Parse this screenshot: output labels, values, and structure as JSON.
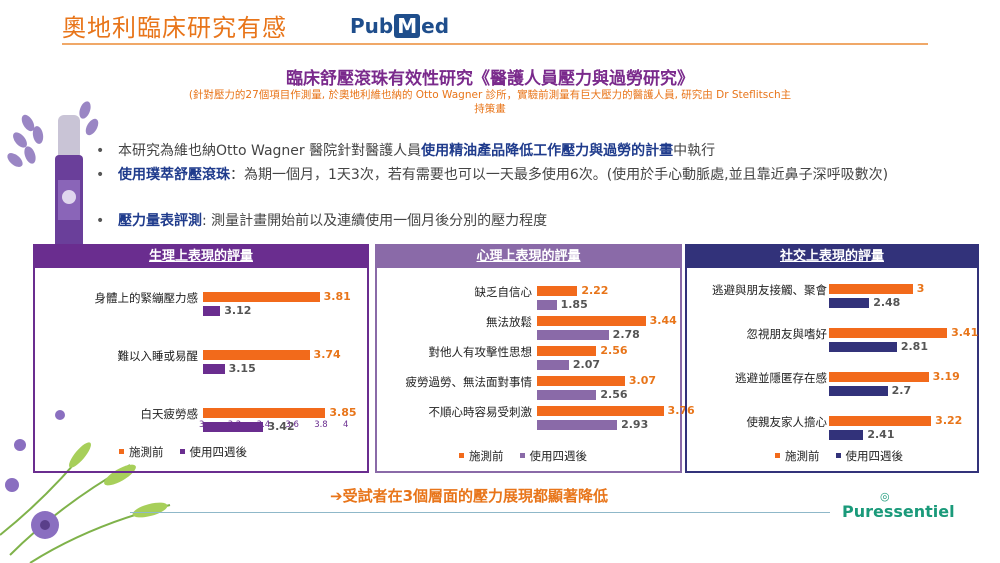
{
  "title": "奧地利臨床研究有感",
  "pubmed": {
    "a": "Pub",
    "b": "M",
    "c": "ed"
  },
  "study_title": "臨床舒壓滾珠有效性研究《醫護人員壓力與過勞研究》",
  "study_note": "(針對壓力的27個項目作測量, 於奧地利維也納的 Otto Wagner 診所，實驗前測量有巨大壓力的醫護人員, 研究由 Dr Steflitsch主持策畫",
  "bullets": [
    {
      "pre": "本研究為維也納Otto Wagner 醫院針對醫護人員",
      "hl": "使用精油產品降低工作壓力與過勞的計畫",
      "post": "中執行"
    },
    {
      "pre": "",
      "hl": "使用璞萃舒壓滾珠",
      "post": "：為期一個月，1天3次，若有需要也可以一天最多使用6次。(使用於手心動脈處,並且靠近鼻子深呼吸數次)"
    },
    {
      "pre": "",
      "hl": "壓力量表評測",
      "post": ": 測量計畫開始前以及連續使用一個月後分別的壓力程度"
    }
  ],
  "chart_data": [
    {
      "type": "bar",
      "title": "生理上表現的評量",
      "categories": [
        "身體上的緊繃壓力感",
        "難以入睡或易醒",
        "白天疲勞感"
      ],
      "series": [
        {
          "name": "施測前",
          "values": [
            3.81,
            3.74,
            3.85
          ],
          "color": "#f26a1b"
        },
        {
          "name": "使用四週後",
          "values": [
            3.12,
            3.15,
            3.42
          ],
          "color": "#6a2d8f"
        }
      ],
      "xlim": [
        3,
        4
      ],
      "ticks": [
        "3",
        "3.2",
        "3.4",
        "3.6",
        "3.8",
        "4"
      ],
      "legend": "bottom"
    },
    {
      "type": "bar",
      "title": "心理上表現的評量",
      "categories": [
        "缺乏自信心",
        "無法放鬆",
        "對他人有攻擊性思想",
        "疲勞過勞、無法面對事情",
        "不順心時容易受刺激"
      ],
      "series": [
        {
          "name": "施測前",
          "values": [
            2.22,
            3.44,
            2.56,
            3.07,
            3.76
          ],
          "color": "#f26a1b"
        },
        {
          "name": "使用四週後",
          "values": [
            1.85,
            2.78,
            2.07,
            2.56,
            2.93
          ],
          "color": "#8a6aa8"
        }
      ],
      "xlim": [
        1.5,
        4
      ],
      "legend": "bottom"
    },
    {
      "type": "bar",
      "title": "社交上表現的評量",
      "categories": [
        "逃避與朋友接觸、聚會",
        "忽視朋友與嗜好",
        "逃避並隱匿存在感",
        "使親友家人擔心"
      ],
      "series": [
        {
          "name": "施測前",
          "values": [
            3,
            3.41,
            3.19,
            3.22
          ],
          "color": "#f26a1b"
        },
        {
          "name": "使用四週後",
          "values": [
            2.48,
            2.81,
            2.7,
            2.41
          ],
          "color": "#32327a"
        }
      ],
      "xlim": [
        2,
        3.6
      ],
      "legend": "bottom"
    }
  ],
  "conclusion": "➔受試者在3個層面的壓力展現都顯著降低",
  "brand": "Puressentiel"
}
